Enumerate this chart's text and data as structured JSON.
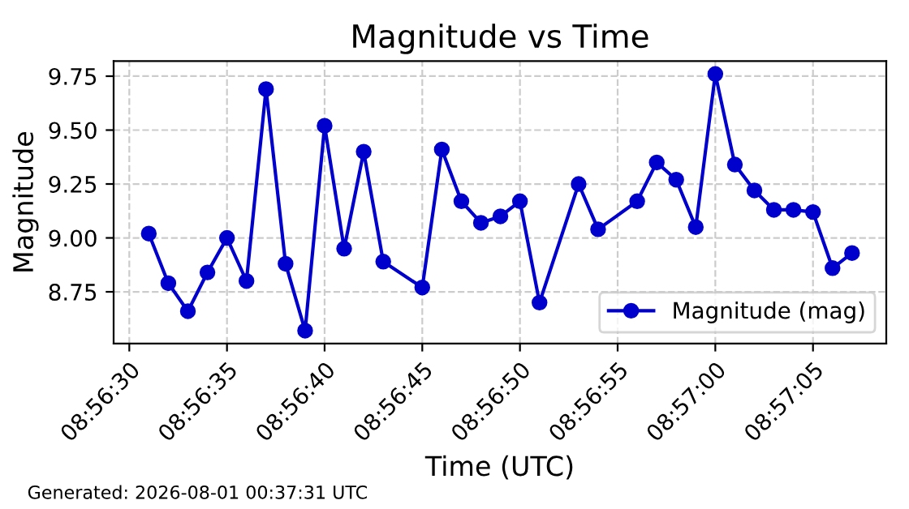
{
  "chart_data": {
    "type": "line",
    "title": "Magnitude vs Time",
    "xlabel": "Time (UTC)",
    "ylabel": "Magnitude",
    "x": [
      8.941944,
      8.942222,
      8.9425,
      8.942778,
      8.943056,
      8.943333,
      8.943611,
      8.943889,
      8.944167,
      8.944444,
      8.944722,
      8.945,
      8.945278,
      8.945833,
      8.946111,
      8.946389,
      8.946667,
      8.946944,
      8.947222,
      8.9475,
      8.948056,
      8.948333,
      8.948889,
      8.949167,
      8.949444,
      8.949722,
      8.95,
      8.950278,
      8.950556,
      8.950833,
      8.951111,
      8.951389,
      8.951667,
      8.951944
    ],
    "series": [
      {
        "name": "Magnitude (mag)",
        "color": "#0000cd",
        "values": [
          9.02,
          8.79,
          8.66,
          8.84,
          9.0,
          8.8,
          9.69,
          8.88,
          8.57,
          9.52,
          8.95,
          9.4,
          8.89,
          8.77,
          9.41,
          9.17,
          9.07,
          9.1,
          9.17,
          8.7,
          9.25,
          9.04,
          9.17,
          9.35,
          9.27,
          9.05,
          9.76,
          9.34,
          9.22,
          9.13,
          9.13,
          9.12,
          8.86,
          8.93
        ]
      }
    ],
    "xlim": [
      8.941444,
      8.952431
    ],
    "xticks": [
      {
        "value": 8.941667,
        "label": "08:56:30"
      },
      {
        "value": 8.943056,
        "label": "08:56:35"
      },
      {
        "value": 8.944444,
        "label": "08:56:40"
      },
      {
        "value": 8.945833,
        "label": "08:56:45"
      },
      {
        "value": 8.947222,
        "label": "08:56:50"
      },
      {
        "value": 8.948611,
        "label": "08:56:55"
      },
      {
        "value": 8.95,
        "label": "08:57:00"
      },
      {
        "value": 8.951389,
        "label": "08:57:05"
      }
    ],
    "ylim": [
      8.51,
      9.82
    ],
    "yticks": [
      {
        "value": 8.75,
        "label": "8.75"
      },
      {
        "value": 9.0,
        "label": "9.00"
      },
      {
        "value": 9.25,
        "label": "9.25"
      },
      {
        "value": 9.5,
        "label": "9.50"
      },
      {
        "value": 9.75,
        "label": "9.75"
      }
    ],
    "grid": true,
    "legend": "lower right",
    "marker": "circle",
    "line_style": "solid",
    "annotations": [
      "Generated: 2026-08-01 00:37:31 UTC"
    ]
  }
}
